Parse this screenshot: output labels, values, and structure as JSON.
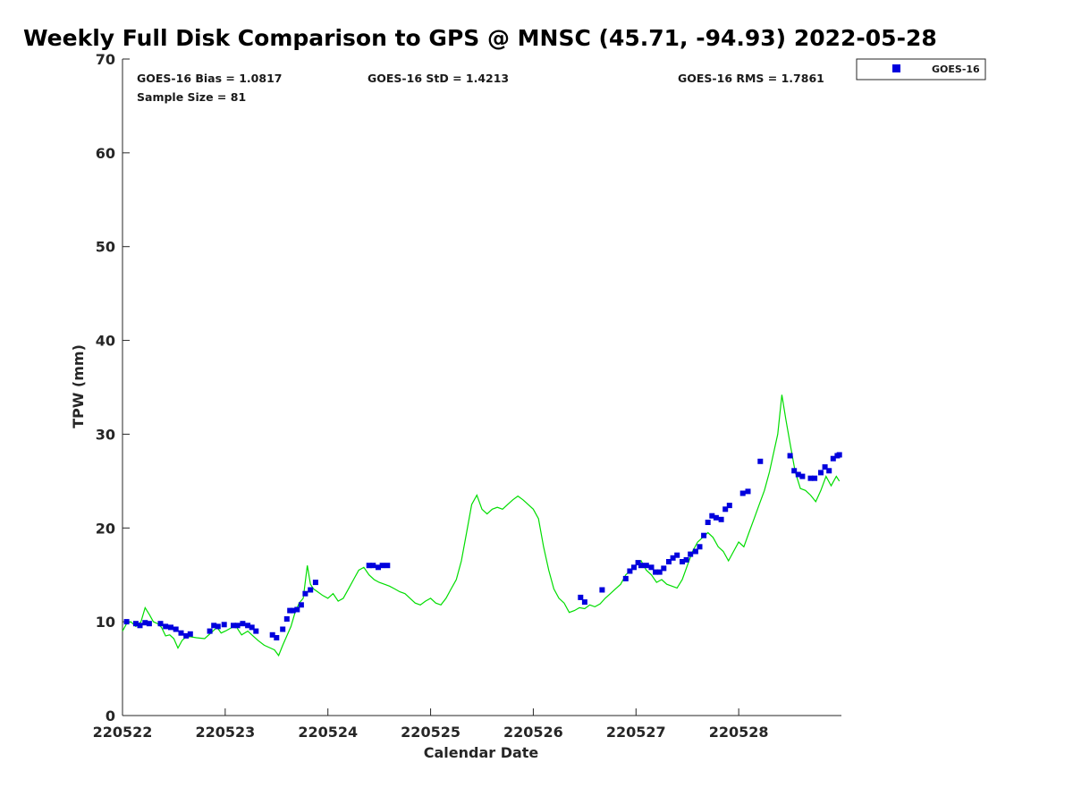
{
  "title": "Weekly Full Disk Comparison to GPS @ MNSC (45.71, -94.93) 2022-05-28",
  "stats": {
    "bias": "GOES-16 Bias = 1.0817",
    "std": "GOES-16 StD = 1.4213",
    "rms": "GOES-16 RMS = 1.7861",
    "sample": "Sample Size = 81"
  },
  "legend": {
    "label": "GOES-16"
  },
  "colors": {
    "goes": "#0000dd",
    "gps": "#00dd00",
    "axis": "#262626"
  },
  "chart_data": {
    "type": "scatter",
    "title": "Weekly Full Disk Comparison to GPS @ MNSC (45.71, -94.93) 2022-05-28",
    "xlabel": "Calendar Date",
    "ylabel": "TPW (mm)",
    "xlim": [
      0,
      7
    ],
    "ylim": [
      0,
      70
    ],
    "xticks": [
      0,
      1,
      2,
      3,
      4,
      5,
      6
    ],
    "xtick_labels": [
      "220522",
      "220523",
      "220524",
      "220525",
      "220526",
      "220527",
      "220528"
    ],
    "yticks": [
      0,
      10,
      20,
      30,
      40,
      50,
      60,
      70
    ],
    "ytick_labels": [
      "0",
      "10",
      "20",
      "30",
      "40",
      "50",
      "60",
      "70"
    ],
    "series": [
      {
        "name": "GPS",
        "type": "line",
        "x": [
          0.0,
          0.04,
          0.08,
          0.13,
          0.18,
          0.22,
          0.26,
          0.3,
          0.34,
          0.38,
          0.42,
          0.46,
          0.5,
          0.54,
          0.58,
          0.62,
          0.66,
          0.72,
          0.8,
          0.88,
          0.92,
          0.96,
          1.0,
          1.05,
          1.1,
          1.16,
          1.22,
          1.27,
          1.32,
          1.38,
          1.44,
          1.48,
          1.52,
          1.56,
          1.6,
          1.64,
          1.68,
          1.72,
          1.76,
          1.8,
          1.83,
          1.86,
          1.9,
          1.95,
          2.0,
          2.05,
          2.1,
          2.15,
          2.2,
          2.25,
          2.3,
          2.35,
          2.4,
          2.45,
          2.5,
          2.55,
          2.6,
          2.65,
          2.7,
          2.75,
          2.8,
          2.85,
          2.9,
          2.95,
          3.0,
          3.05,
          3.1,
          3.15,
          3.2,
          3.25,
          3.3,
          3.35,
          3.4,
          3.45,
          3.5,
          3.55,
          3.6,
          3.65,
          3.7,
          3.75,
          3.8,
          3.85,
          3.9,
          3.95,
          4.0,
          4.05,
          4.1,
          4.15,
          4.2,
          4.25,
          4.3,
          4.35,
          4.4,
          4.45,
          4.5,
          4.55,
          4.6,
          4.65,
          4.7,
          4.75,
          4.8,
          4.85,
          4.9,
          4.95,
          5.0,
          5.05,
          5.1,
          5.15,
          5.2,
          5.25,
          5.3,
          5.35,
          5.4,
          5.45,
          5.5,
          5.55,
          5.6,
          5.65,
          5.7,
          5.75,
          5.8,
          5.85,
          5.9,
          5.95,
          6.0,
          6.05,
          6.1,
          6.15,
          6.2,
          6.25,
          6.3,
          6.35,
          6.38,
          6.42,
          6.46,
          6.5,
          6.55,
          6.6,
          6.65,
          6.7,
          6.75,
          6.8,
          6.85,
          6.9,
          6.95,
          6.98
        ],
        "y": [
          9.0,
          9.8,
          10.0,
          9.5,
          10.0,
          11.5,
          10.8,
          10.0,
          9.8,
          9.4,
          8.5,
          8.6,
          8.2,
          7.2,
          8.0,
          8.4,
          8.4,
          8.3,
          8.2,
          9.0,
          9.4,
          8.8,
          9.0,
          9.3,
          9.6,
          8.6,
          9.0,
          8.5,
          8.0,
          7.5,
          7.2,
          7.0,
          6.4,
          7.5,
          8.5,
          9.5,
          11.0,
          12.0,
          12.5,
          16.0,
          14.0,
          13.5,
          13.2,
          12.8,
          12.5,
          13.0,
          12.2,
          12.5,
          13.5,
          14.5,
          15.5,
          15.8,
          15.0,
          14.5,
          14.2,
          14.0,
          13.8,
          13.5,
          13.2,
          13.0,
          12.5,
          12.0,
          11.8,
          12.2,
          12.5,
          12.0,
          11.8,
          12.5,
          13.5,
          14.5,
          16.5,
          19.5,
          22.5,
          23.5,
          22.0,
          21.5,
          22.0,
          22.2,
          22.0,
          22.5,
          23.0,
          23.4,
          23.0,
          22.5,
          22.0,
          21.0,
          18.0,
          15.5,
          13.5,
          12.5,
          12.0,
          11.0,
          11.2,
          11.5,
          11.4,
          11.8,
          11.6,
          11.9,
          12.5,
          13.0,
          13.5,
          14.0,
          15.0,
          15.5,
          16.0,
          16.5,
          15.5,
          15.0,
          14.2,
          14.5,
          14.0,
          13.8,
          13.6,
          14.5,
          16.0,
          17.5,
          18.5,
          19.0,
          19.5,
          19.0,
          18.0,
          17.5,
          16.5,
          17.5,
          18.5,
          18.0,
          19.5,
          21.0,
          22.5,
          24.0,
          26.0,
          28.5,
          30.0,
          34.2,
          31.5,
          29.0,
          26.0,
          24.2,
          24.0,
          23.5,
          22.8,
          24.0,
          25.5,
          24.5,
          25.5,
          25.0
        ],
        "color": "#00dd00"
      },
      {
        "name": "GOES-16",
        "type": "scatter",
        "x": [
          0.04,
          0.13,
          0.17,
          0.22,
          0.26,
          0.37,
          0.42,
          0.47,
          0.52,
          0.57,
          0.62,
          0.66,
          0.85,
          0.89,
          0.93,
          0.99,
          1.08,
          1.12,
          1.17,
          1.22,
          1.26,
          1.3,
          1.46,
          1.5,
          1.56,
          1.6,
          1.63,
          1.66,
          1.7,
          1.74,
          1.78,
          1.83,
          1.88,
          2.4,
          2.44,
          2.49,
          2.53,
          2.58,
          4.46,
          4.5,
          4.67,
          4.9,
          4.94,
          4.98,
          5.02,
          5.05,
          5.1,
          5.15,
          5.19,
          5.23,
          5.27,
          5.32,
          5.36,
          5.4,
          5.45,
          5.49,
          5.53,
          5.58,
          5.62,
          5.66,
          5.7,
          5.74,
          5.78,
          5.83,
          5.87,
          5.91,
          6.04,
          6.09,
          6.21,
          6.5,
          6.54,
          6.58,
          6.62,
          6.7,
          6.74,
          6.8,
          6.84,
          6.88,
          6.92,
          6.96,
          6.98
        ],
        "y": [
          10.0,
          9.8,
          9.6,
          9.9,
          9.8,
          9.8,
          9.5,
          9.4,
          9.2,
          8.8,
          8.5,
          8.7,
          9.0,
          9.6,
          9.5,
          9.7,
          9.6,
          9.6,
          9.8,
          9.6,
          9.4,
          9.0,
          8.6,
          8.3,
          9.2,
          10.3,
          11.2,
          11.2,
          11.3,
          11.8,
          13.0,
          13.4,
          14.2,
          16.0,
          16.0,
          15.8,
          16.0,
          16.0,
          12.6,
          12.1,
          13.4,
          14.6,
          15.4,
          15.8,
          16.3,
          16.0,
          16.0,
          15.8,
          15.3,
          15.3,
          15.7,
          16.4,
          16.8,
          17.1,
          16.4,
          16.6,
          17.2,
          17.5,
          18.0,
          19.2,
          20.6,
          21.3,
          21.1,
          20.9,
          22.0,
          22.4,
          23.7,
          23.9,
          27.1,
          27.7,
          26.1,
          25.7,
          25.5,
          25.3,
          25.3,
          25.9,
          26.5,
          26.1,
          27.4,
          27.7,
          27.8
        ],
        "color": "#0000dd"
      }
    ]
  }
}
